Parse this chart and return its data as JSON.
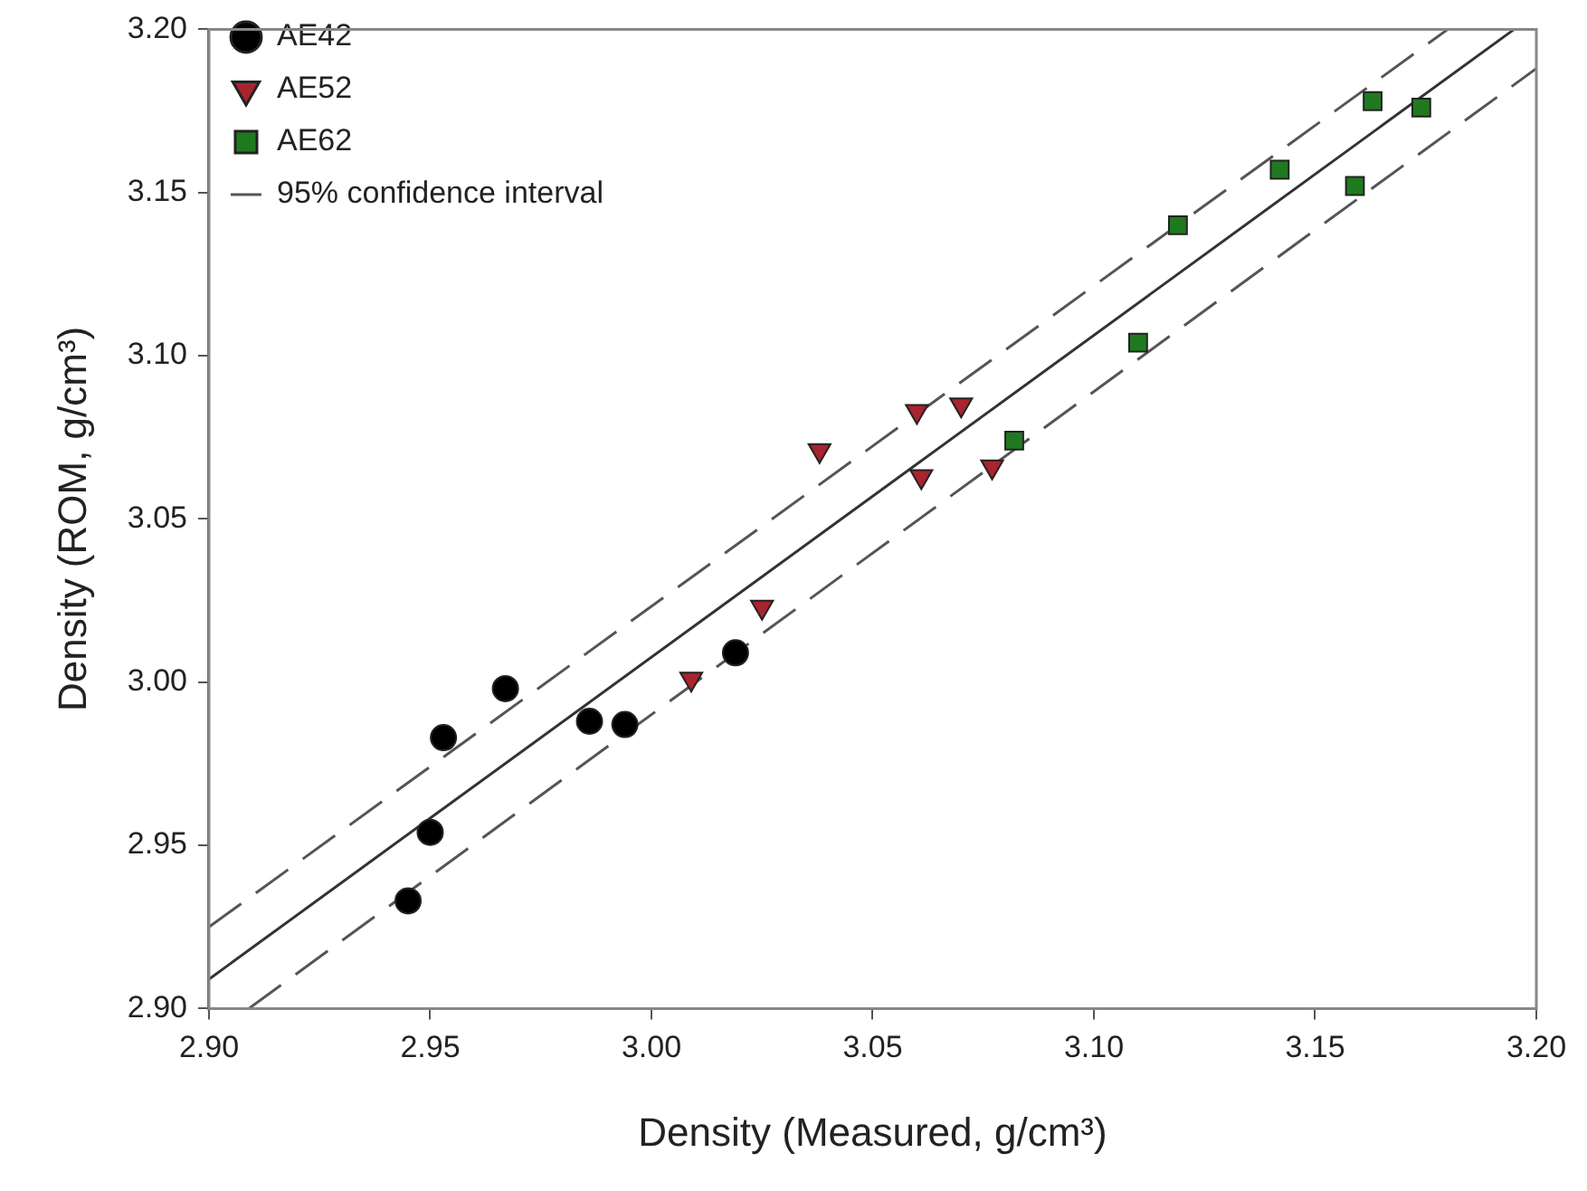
{
  "chart_data": {
    "type": "scatter",
    "xlabel": "Density (Measured, g/cm³)",
    "ylabel": "Density (ROM, g/cm³)",
    "xlim": [
      2.9,
      3.2
    ],
    "ylim": [
      2.9,
      3.2
    ],
    "xticks": [
      {
        "value": 2.9,
        "label": "2.90"
      },
      {
        "value": 2.95,
        "label": "2.95"
      },
      {
        "value": 3.0,
        "label": "3.00"
      },
      {
        "value": 3.05,
        "label": "3.05"
      },
      {
        "value": 3.1,
        "label": "3.10"
      },
      {
        "value": 3.15,
        "label": "3.15"
      },
      {
        "value": 3.2,
        "label": "3.20"
      }
    ],
    "yticks": [
      {
        "value": 2.9,
        "label": "2.90"
      },
      {
        "value": 2.95,
        "label": "2.95"
      },
      {
        "value": 3.0,
        "label": "3.00"
      },
      {
        "value": 3.05,
        "label": "3.05"
      },
      {
        "value": 3.1,
        "label": "3.10"
      },
      {
        "value": 3.15,
        "label": "3.15"
      },
      {
        "value": 3.2,
        "label": "3.20"
      }
    ],
    "grid": false,
    "legend": "top left",
    "series": [
      {
        "name": "AE42",
        "color": "#000000",
        "marker": "circle",
        "x": [
          2.945,
          2.95,
          2.953,
          2.967,
          2.986,
          2.994,
          3.019
        ],
        "values": [
          2.933,
          2.954,
          2.983,
          2.998,
          2.988,
          2.987,
          3.009
        ]
      },
      {
        "name": "AE52",
        "color": "#a8242e",
        "marker": "triangle",
        "x": [
          3.009,
          3.025,
          3.038,
          3.06,
          3.07,
          3.061,
          3.077
        ],
        "values": [
          3.001,
          3.023,
          3.071,
          3.083,
          3.085,
          3.063,
          3.066
        ]
      },
      {
        "name": "AE62",
        "color": "#1f7a1f",
        "marker": "square",
        "x": [
          3.082,
          3.11,
          3.119,
          3.142,
          3.159,
          3.163,
          3.174
        ],
        "values": [
          3.074,
          3.104,
          3.14,
          3.157,
          3.152,
          3.178,
          3.176
        ]
      },
      {
        "name": "95% confidence interval",
        "type": "line",
        "color": "#555555",
        "line_style": "dashed",
        "marker": "none",
        "x": [
          2.9,
          3.18
        ],
        "values": [
          2.925,
          3.2
        ]
      },
      {
        "type": "line",
        "color": "#555555",
        "line_style": "dashed",
        "marker": "none",
        "x": [
          2.909,
          3.2
        ],
        "values": [
          2.9,
          3.188
        ]
      },
      {
        "type": "line",
        "color": "#333333",
        "line_style": "solid",
        "marker": "none",
        "x": [
          2.9,
          3.195
        ],
        "values": [
          2.909,
          3.2
        ]
      }
    ]
  }
}
